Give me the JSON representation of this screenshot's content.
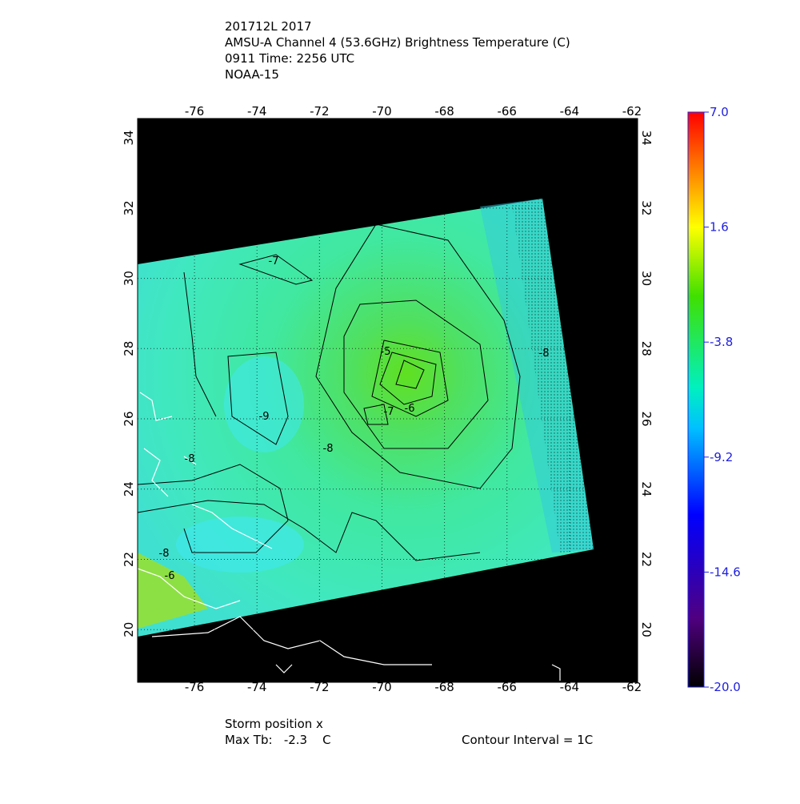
{
  "header": {
    "lines": [
      "201712L 2017",
      "AMSU-A Channel 4 (53.6GHz) Brightness Temperature (C)",
      "0911 Time: 2256 UTC",
      "NOAA-15"
    ]
  },
  "map": {
    "xlim": [
      -77.82,
      -61.82
    ],
    "ylim": [
      18.5,
      34.55
    ],
    "xticks": [
      -76,
      -74,
      -72,
      -70,
      -68,
      -66,
      -64,
      -62
    ],
    "yticks": [
      20,
      22,
      24,
      26,
      28,
      30,
      32,
      34
    ],
    "contour_labels": [
      "-7",
      "-5",
      "-6",
      "-7",
      "-8",
      "-9",
      "-8",
      "-8",
      "-8",
      "-6"
    ]
  },
  "colorbar": {
    "lim": [
      -20,
      7
    ],
    "ticks": [
      {
        "value": 7,
        "label": "7.0"
      },
      {
        "value": 1.6,
        "label": "1.6"
      },
      {
        "value": -3.8,
        "label": "-3.8"
      },
      {
        "value": -9.2,
        "label": "-9.2"
      },
      {
        "value": -14.6,
        "label": "-14.6"
      },
      {
        "value": -20,
        "label": "-20.0"
      }
    ]
  },
  "footer": {
    "storm_position": "Storm position x",
    "max_tb": "Max Tb:   -2.3    C",
    "contour_interval": "Contour Interval = 1C"
  }
}
